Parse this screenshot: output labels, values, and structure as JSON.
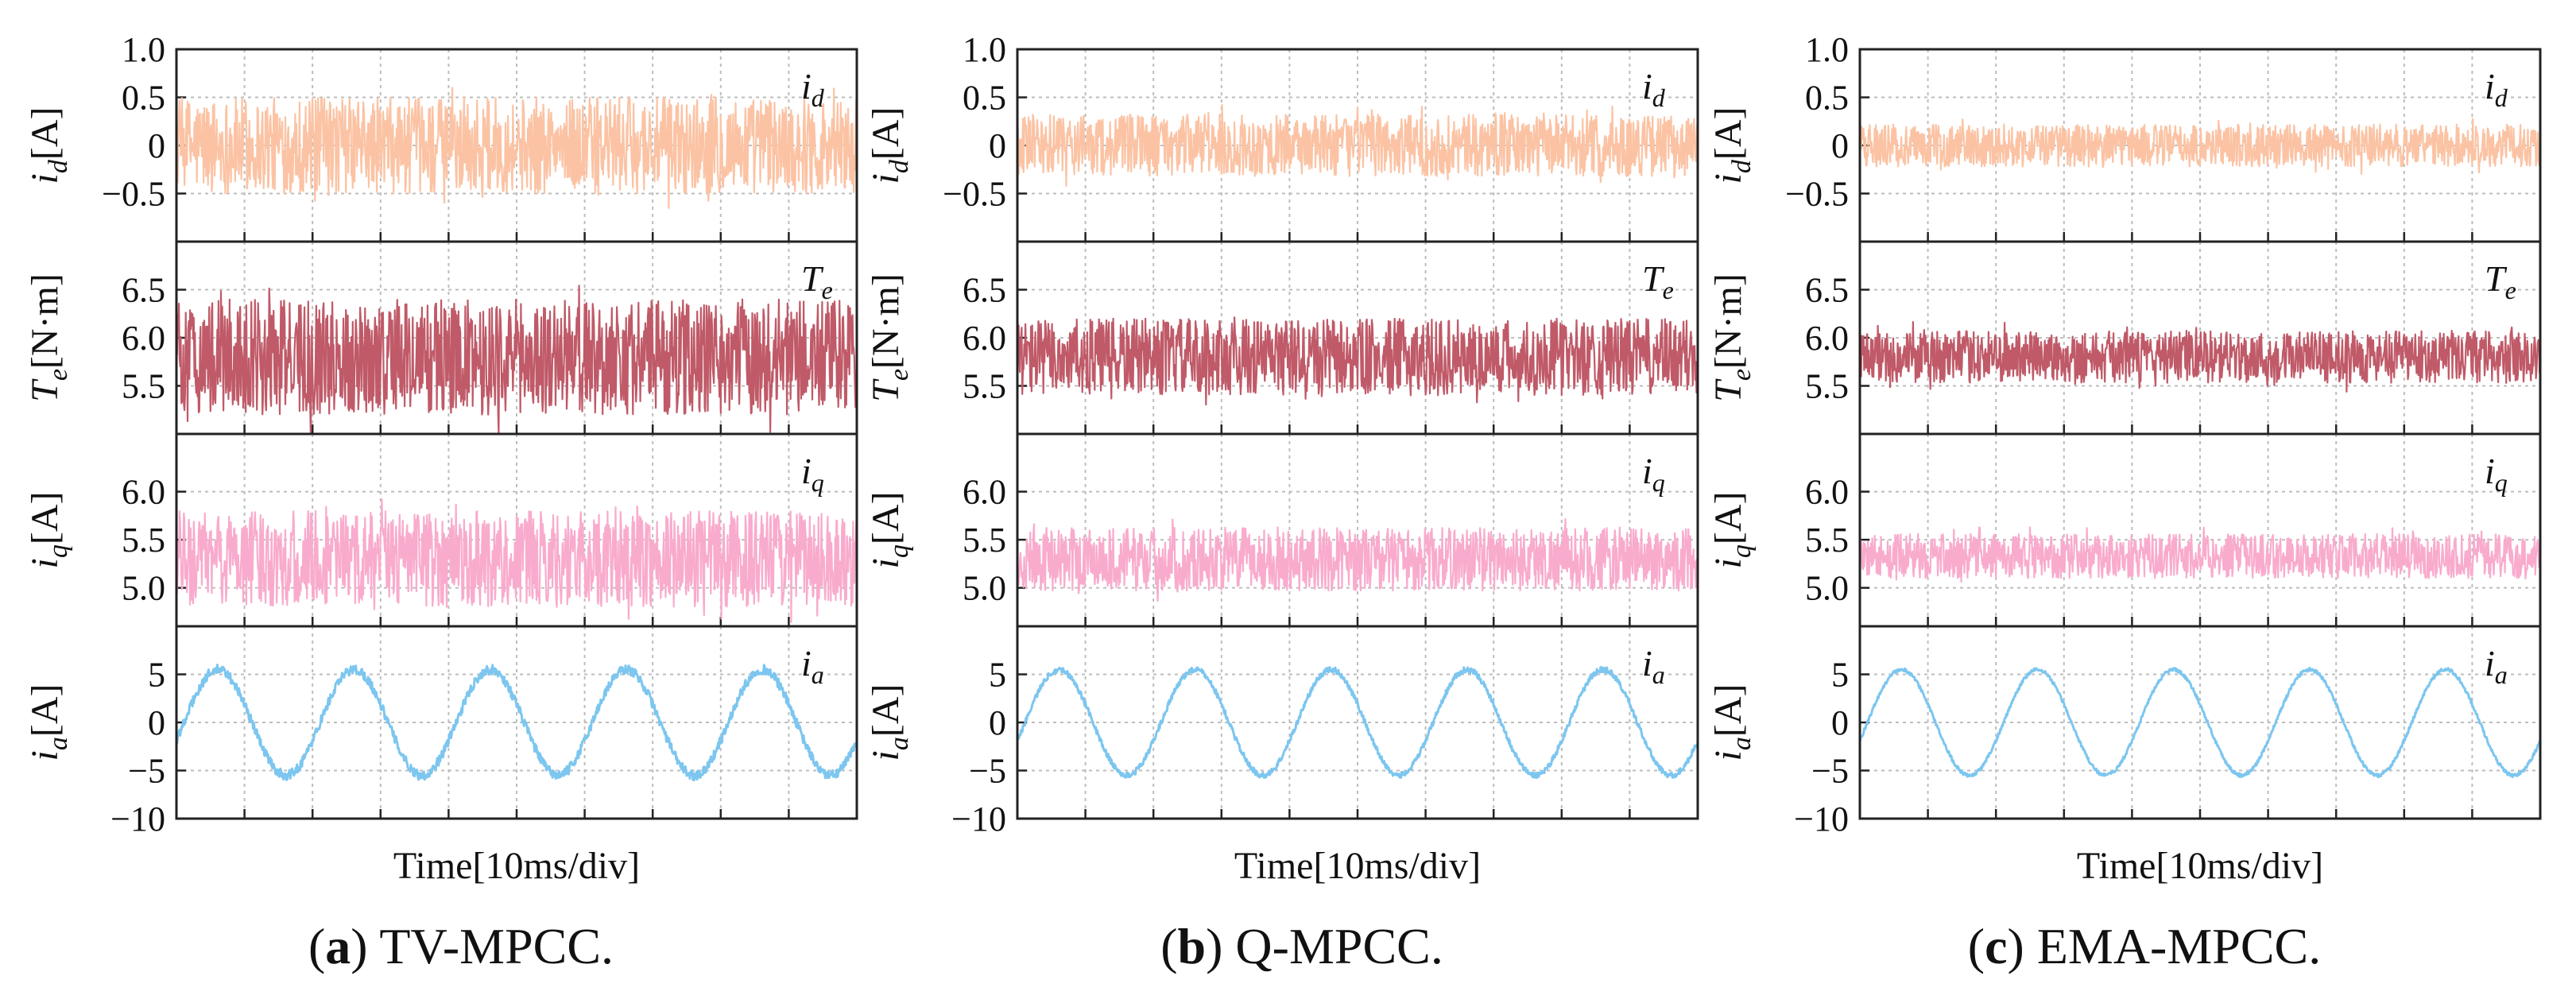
{
  "figure": {
    "xlabel": "Time[10ms/div]",
    "colors": {
      "id": "#fbc3a4",
      "te": "#c05a68",
      "iq": "#f9abcd",
      "ia": "#7cc6ef",
      "frame": "#222222",
      "grid": "#bdbdbd"
    }
  },
  "panels": [
    {
      "id": "a",
      "letter": "(a)",
      "name": "TV-MPCC."
    },
    {
      "id": "b",
      "letter": "(b)",
      "name": "Q-MPCC."
    },
    {
      "id": "c",
      "letter": "(c)",
      "name": "EMA-MPCC."
    }
  ],
  "rows": [
    {
      "key": "id",
      "ylabel_main": "i",
      "ylabel_sub": "d",
      "ylabel_unit": "[A]",
      "tag_main": "i",
      "tag_sub": "d",
      "ylim": [
        -1.0,
        1.0
      ],
      "ticks": [
        "-0.5",
        "0",
        "0.5",
        "1.0"
      ],
      "tick_values": [
        -0.5,
        0,
        0.5,
        1.0
      ]
    },
    {
      "key": "te",
      "ylabel_main": "T",
      "ylabel_sub": "e",
      "ylabel_unit": "[N·m]",
      "tag_main": "T",
      "tag_sub": "e",
      "ylim": [
        5.0,
        7.0
      ],
      "ticks": [
        "5.5",
        "6.0",
        "6.5"
      ],
      "tick_values": [
        5.5,
        6.0,
        6.5
      ]
    },
    {
      "key": "iq",
      "ylabel_main": "i",
      "ylabel_sub": "q",
      "ylabel_unit": "[A]",
      "tag_main": "i",
      "tag_sub": "q",
      "ylim": [
        4.6,
        6.6
      ],
      "ticks": [
        "5.0",
        "5.5",
        "6.0"
      ],
      "tick_values": [
        5.0,
        5.5,
        6.0
      ]
    },
    {
      "key": "ia",
      "ylabel_main": "i",
      "ylabel_sub": "a",
      "ylabel_unit": "[A]",
      "tag_main": "i",
      "tag_sub": "a",
      "ylim": [
        -10,
        10
      ],
      "ticks": [
        "-10",
        "-5",
        "0",
        "5"
      ],
      "tick_values": [
        -10,
        -5,
        0,
        5
      ]
    }
  ],
  "chart_data": [
    {
      "type": "line",
      "panel": "(a) TV-MPCC.",
      "xlabel": "Time[10ms/div]",
      "x_divisions": 10,
      "series": [
        {
          "name": "i_d",
          "ylim": [
            -1.0,
            1.0
          ],
          "mean": 0.0,
          "ripple_amplitude": 0.5
        },
        {
          "name": "T_e",
          "ylim": [
            5.0,
            7.0
          ],
          "mean": 5.8,
          "ripple_amplitude": 0.6
        },
        {
          "name": "i_q",
          "ylim": [
            4.6,
            6.6
          ],
          "mean": 5.3,
          "ripple_amplitude": 0.5
        },
        {
          "name": "i_a",
          "ylim": [
            -10,
            10
          ],
          "mean": 0.0,
          "sine_amplitude": 5.5,
          "ripple_amplitude": 0.5,
          "cycles": 5
        }
      ]
    },
    {
      "type": "line",
      "panel": "(b) Q-MPCC.",
      "xlabel": "Time[10ms/div]",
      "x_divisions": 10,
      "series": [
        {
          "name": "i_d",
          "ylim": [
            -1.0,
            1.0
          ],
          "mean": 0.0,
          "ripple_amplitude": 0.32
        },
        {
          "name": "T_e",
          "ylim": [
            5.0,
            7.0
          ],
          "mean": 5.8,
          "ripple_amplitude": 0.4
        },
        {
          "name": "i_q",
          "ylim": [
            4.6,
            6.6
          ],
          "mean": 5.3,
          "ripple_amplitude": 0.33
        },
        {
          "name": "i_a",
          "ylim": [
            -10,
            10
          ],
          "mean": 0.0,
          "sine_amplitude": 5.5,
          "ripple_amplitude": 0.3,
          "cycles": 5
        }
      ]
    },
    {
      "type": "line",
      "panel": "(c) EMA-MPCC.",
      "xlabel": "Time[10ms/div]",
      "x_divisions": 10,
      "series": [
        {
          "name": "i_d",
          "ylim": [
            -1.0,
            1.0
          ],
          "mean": 0.0,
          "ripple_amplitude": 0.22
        },
        {
          "name": "T_e",
          "ylim": [
            5.0,
            7.0
          ],
          "mean": 5.8,
          "ripple_amplitude": 0.27
        },
        {
          "name": "i_q",
          "ylim": [
            4.6,
            6.6
          ],
          "mean": 5.33,
          "ripple_amplitude": 0.23
        },
        {
          "name": "i_a",
          "ylim": [
            -10,
            10
          ],
          "mean": 0.0,
          "sine_amplitude": 5.5,
          "ripple_amplitude": 0.18,
          "cycles": 5
        }
      ]
    }
  ]
}
